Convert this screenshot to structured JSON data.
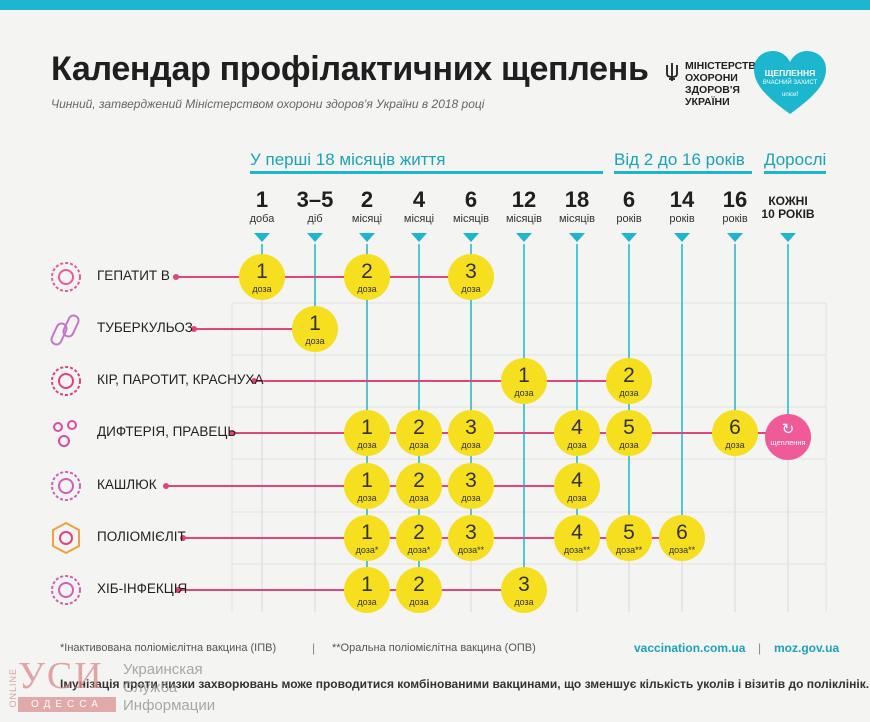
{
  "header": {
    "title": "Календар профілактичних щеплень",
    "subtitle": "Чинний, затверджений Міністерством охорони здоров'я України в 2018 році",
    "ministry_lines": [
      "МІНІСТЕРСТВО",
      "ОХОРОНИ",
      "ЗДОРОВ'Я",
      "УКРАЇНИ"
    ],
    "badge_title_1": "ЩЕПЛЕННЯ",
    "badge_subtitle": "ВЧАСНИЙ ЗАХИСТ",
    "badge_partner": "unicef",
    "accent_color": "#1cb6cf",
    "dose_color": "#f6df1e",
    "adult_color": "#ef5a97"
  },
  "sections": {
    "infant": "У перші 18 місяців життя",
    "child": "Від 2 до 16 років",
    "adult": "Дорослі"
  },
  "columns": [
    {
      "num": "1",
      "unit": "доба"
    },
    {
      "num": "3–5",
      "unit": "діб"
    },
    {
      "num": "2",
      "unit": "місяці"
    },
    {
      "num": "4",
      "unit": "місяці"
    },
    {
      "num": "6",
      "unit": "місяців"
    },
    {
      "num": "12",
      "unit": "місяців"
    },
    {
      "num": "18",
      "unit": "місяців"
    },
    {
      "num": "6",
      "unit": "років"
    },
    {
      "num": "14",
      "unit": "років"
    },
    {
      "num": "16",
      "unit": "років"
    },
    {
      "num": "КОЖНІ",
      "unit": "10 РОКІВ"
    }
  ],
  "dose_word": "доза",
  "rows": [
    {
      "label": "ГЕПАТИТ В",
      "icon": "hepatitis-virus-icon",
      "doses": [
        {
          "col": 0,
          "n": "1"
        },
        {
          "col": 2,
          "n": "2"
        },
        {
          "col": 4,
          "n": "3"
        }
      ]
    },
    {
      "label": "ТУБЕРКУЛЬОЗ",
      "icon": "tuberculosis-bacteria-icon",
      "doses": [
        {
          "col": 1,
          "n": "1"
        }
      ]
    },
    {
      "label": "КІР, ПАРОТИТ, КРАСНУХА",
      "icon": "measles-virus-icon",
      "doses": [
        {
          "col": 5,
          "n": "1"
        },
        {
          "col": 7,
          "n": "2"
        }
      ]
    },
    {
      "label": "ДИФТЕРІЯ, ПРАВЕЦЬ",
      "icon": "diphtheria-bacteria-icon",
      "doses": [
        {
          "col": 2,
          "n": "1"
        },
        {
          "col": 3,
          "n": "2"
        },
        {
          "col": 4,
          "n": "3"
        },
        {
          "col": 6,
          "n": "4"
        },
        {
          "col": 7,
          "n": "5"
        },
        {
          "col": 9,
          "n": "6"
        }
      ]
    },
    {
      "label": "КАШЛЮК",
      "icon": "pertussis-bacteria-icon",
      "doses": [
        {
          "col": 2,
          "n": "1"
        },
        {
          "col": 3,
          "n": "2"
        },
        {
          "col": 4,
          "n": "3"
        },
        {
          "col": 6,
          "n": "4"
        }
      ]
    },
    {
      "label": "ПОЛІОМІЄЛІТ",
      "icon": "polio-virus-icon",
      "doses": [
        {
          "col": 2,
          "n": "1",
          "mark": "*"
        },
        {
          "col": 3,
          "n": "2",
          "mark": "*"
        },
        {
          "col": 4,
          "n": "3",
          "mark": "**"
        },
        {
          "col": 6,
          "n": "4",
          "mark": "**"
        },
        {
          "col": 7,
          "n": "5",
          "mark": "**"
        },
        {
          "col": 8,
          "n": "6",
          "mark": "**"
        }
      ]
    },
    {
      "label": "ХІБ-ІНФЕКЦІЯ",
      "icon": "hib-bacteria-icon",
      "doses": [
        {
          "col": 2,
          "n": "1"
        },
        {
          "col": 3,
          "n": "2"
        },
        {
          "col": 5,
          "n": "3"
        }
      ]
    }
  ],
  "adult_booster": {
    "label": "щеплення",
    "icon": "repeat-icon"
  },
  "footer": {
    "footnote_1": "*Інактивована поліомієлітна вакцина (ІПВ)",
    "separator": "|",
    "footnote_2": "**Оральна поліомієлітна вакцина (ОПВ)",
    "link_1": "vaccination.com.ua",
    "link_2": "moz.gov.ua",
    "note": "Імунізація проти низки захворювань може проводитися комбінованими вакцинами, що зменшує кількість уколів і візитів до поліклінік."
  },
  "watermark": {
    "online": "ONLINE",
    "brand": "УСИ",
    "city": "ОДЕССА",
    "line1": "Украинская",
    "line2": "Служба",
    "line3": "Информации"
  }
}
